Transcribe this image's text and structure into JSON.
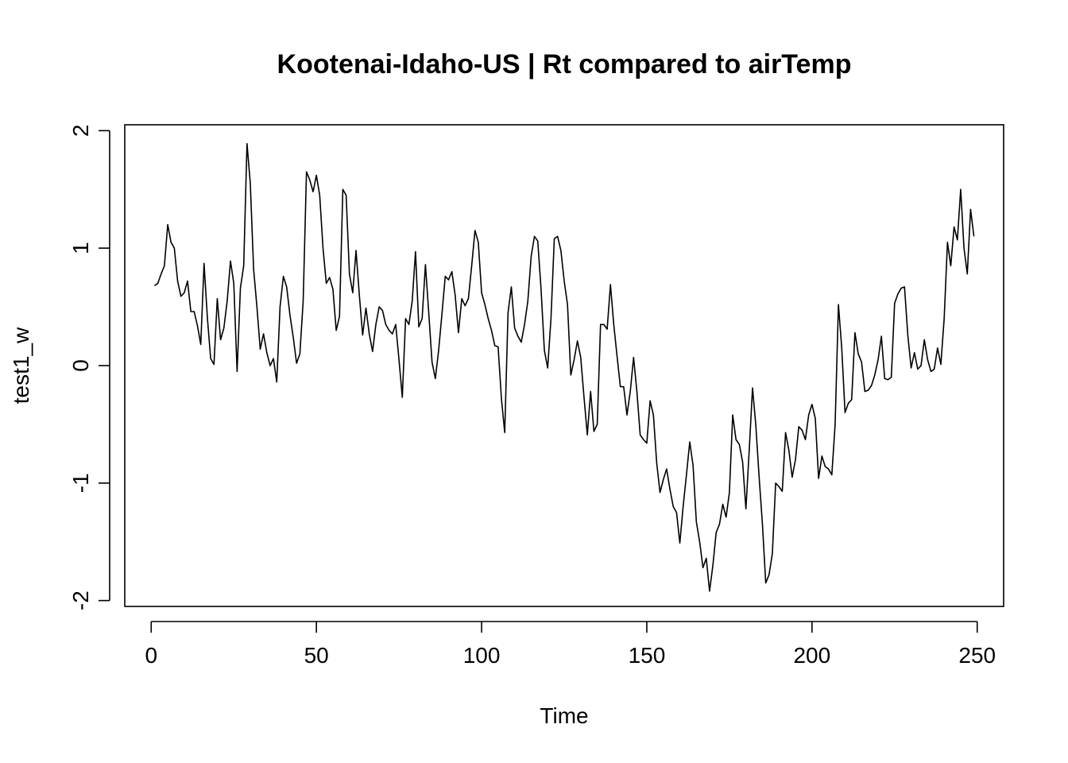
{
  "chart_data": {
    "type": "line",
    "title": "Kootenai-Idaho-US | Rt compared to airTemp",
    "xlabel": "Time",
    "ylabel": "test1_w",
    "xlim": [
      -8,
      258
    ],
    "ylim": [
      -2.05,
      2.05
    ],
    "x_ticks": [
      0,
      50,
      100,
      150,
      200,
      250
    ],
    "x_tick_labels": [
      "0",
      "50",
      "100",
      "150",
      "200",
      "250"
    ],
    "y_ticks": [
      -2,
      -1,
      0,
      1,
      2
    ],
    "y_tick_labels": [
      "-2",
      "-1",
      "0",
      "1",
      "2"
    ],
    "grid": false,
    "line_color": "#000000",
    "x_start": 1,
    "x_step": 1,
    "series": [
      {
        "values": [
          0.68,
          0.7,
          0.78,
          0.85,
          1.2,
          1.05,
          1.0,
          0.72,
          0.59,
          0.62,
          0.72,
          0.46,
          0.46,
          0.34,
          0.18,
          0.87,
          0.41,
          0.06,
          0.01,
          0.57,
          0.22,
          0.32,
          0.55,
          0.89,
          0.7,
          -0.05,
          0.66,
          0.85,
          1.89,
          1.55,
          0.82,
          0.5,
          0.14,
          0.27,
          0.11,
          0.0,
          0.06,
          -0.14,
          0.5,
          0.76,
          0.67,
          0.43,
          0.24,
          0.02,
          0.1,
          0.55,
          1.65,
          1.58,
          1.48,
          1.62,
          1.45,
          1.0,
          0.7,
          0.75,
          0.65,
          0.3,
          0.42,
          1.5,
          1.45,
          0.78,
          0.62,
          0.98,
          0.6,
          0.26,
          0.49,
          0.27,
          0.12,
          0.35,
          0.5,
          0.47,
          0.35,
          0.3,
          0.27,
          0.35,
          0.05,
          -0.27,
          0.4,
          0.35,
          0.55,
          0.97,
          0.33,
          0.4,
          0.86,
          0.45,
          0.03,
          -0.11,
          0.13,
          0.44,
          0.76,
          0.73,
          0.8,
          0.6,
          0.28,
          0.57,
          0.51,
          0.57,
          0.85,
          1.15,
          1.05,
          0.62,
          0.52,
          0.4,
          0.3,
          0.17,
          0.16,
          -0.28,
          -0.57,
          0.45,
          0.67,
          0.32,
          0.25,
          0.2,
          0.35,
          0.55,
          0.93,
          1.1,
          1.06,
          0.65,
          0.13,
          -0.02,
          0.4,
          1.08,
          1.1,
          0.98,
          0.72,
          0.52,
          -0.08,
          0.05,
          0.21,
          0.07,
          -0.27,
          -0.59,
          -0.22,
          -0.56,
          -0.5,
          0.35,
          0.35,
          0.31,
          0.69,
          0.35,
          0.08,
          -0.18,
          -0.18,
          -0.42,
          -0.22,
          0.07,
          -0.22,
          -0.59,
          -0.63,
          -0.66,
          -0.3,
          -0.42,
          -0.83,
          -1.08,
          -0.97,
          -0.88,
          -1.05,
          -1.2,
          -1.25,
          -1.51,
          -1.2,
          -0.93,
          -0.65,
          -0.85,
          -1.33,
          -1.5,
          -1.72,
          -1.64,
          -1.92,
          -1.7,
          -1.42,
          -1.35,
          -1.18,
          -1.29,
          -1.08,
          -0.42,
          -0.63,
          -0.67,
          -0.82,
          -1.22,
          -0.72,
          -0.19,
          -0.51,
          -0.95,
          -1.35,
          -1.85,
          -1.78,
          -1.6,
          -1.0,
          -1.03,
          -1.07,
          -0.57,
          -0.72,
          -0.95,
          -0.8,
          -0.52,
          -0.55,
          -0.63,
          -0.42,
          -0.33,
          -0.45,
          -0.96,
          -0.77,
          -0.86,
          -0.88,
          -0.93,
          -0.5,
          0.52,
          0.15,
          -0.4,
          -0.32,
          -0.29,
          0.28,
          0.1,
          0.03,
          -0.22,
          -0.21,
          -0.17,
          -0.08,
          0.05,
          0.25,
          -0.11,
          -0.12,
          -0.1,
          0.53,
          0.61,
          0.66,
          0.67,
          0.26,
          -0.02,
          0.11,
          -0.03,
          0.0,
          0.22,
          0.05,
          -0.05,
          -0.03,
          0.15,
          0.01,
          0.4,
          1.05,
          0.85,
          1.18,
          1.07,
          1.5,
          1.0,
          0.78,
          1.33,
          1.1
        ]
      }
    ]
  }
}
